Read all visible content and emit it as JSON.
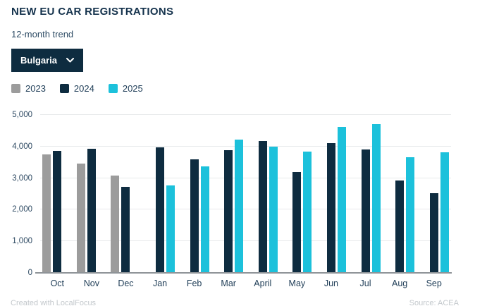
{
  "header": {
    "title": "NEW EU CAR REGISTRATIONS",
    "subtitle": "12-month trend",
    "country_selector": {
      "value": "Bulgaria"
    }
  },
  "legend": {
    "items": [
      {
        "label": "2023",
        "color": "#9c9c9c"
      },
      {
        "label": "2024",
        "color": "#0e2c40"
      },
      {
        "label": "2025",
        "color": "#1cc1db"
      }
    ]
  },
  "chart_data": {
    "type": "bar",
    "title": "NEW EU CAR REGISTRATIONS",
    "subtitle": "12-month trend",
    "selected_region": "Bulgaria",
    "categories": [
      "Oct",
      "Nov",
      "Dec",
      "Jan",
      "Feb",
      "Mar",
      "April",
      "May",
      "Jun",
      "Jul",
      "Aug",
      "Sep"
    ],
    "series": [
      {
        "name": "2023",
        "color": "#9c9c9c",
        "values": [
          3750,
          3450,
          3090,
          null,
          null,
          null,
          null,
          null,
          null,
          null,
          null,
          null
        ]
      },
      {
        "name": "2024",
        "color": "#0e2c40",
        "values": [
          3870,
          3940,
          2720,
          3970,
          3590,
          3890,
          4180,
          3190,
          4100,
          3900,
          2930,
          2520
        ]
      },
      {
        "name": "2025",
        "color": "#1cc1db",
        "values": [
          null,
          null,
          null,
          2760,
          3370,
          4210,
          4000,
          3830,
          4630,
          4720,
          3670,
          3820
        ]
      }
    ],
    "xlabel": "",
    "ylabel": "",
    "ylim": [
      0,
      5000
    ],
    "yticks": [
      0,
      1000,
      2000,
      3000,
      4000,
      5000
    ],
    "ytick_labels": [
      "0",
      "1,000",
      "2,000",
      "3,000",
      "4,000",
      "5,000"
    ],
    "grid": true,
    "legend_position": "top-left"
  },
  "footer": {
    "credit": "Created with LocalFocus",
    "source": "Source: ACEA"
  }
}
